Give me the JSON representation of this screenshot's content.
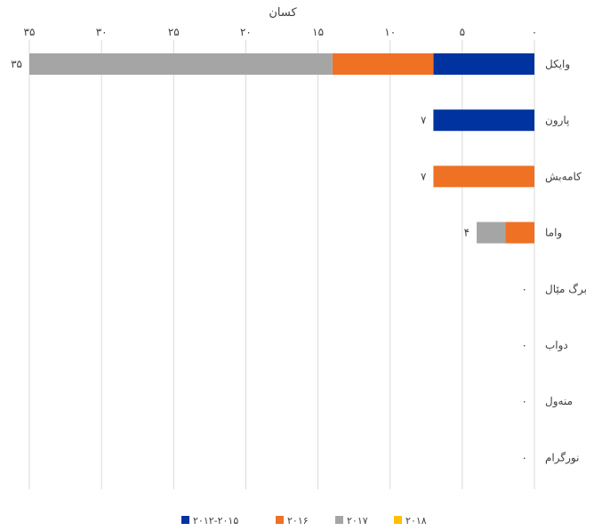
{
  "chart_data": {
    "type": "bar",
    "orientation": "horizontal",
    "stacked": true,
    "reversed_x_axis": true,
    "xlabel": "کسان",
    "xlim": [
      0,
      35
    ],
    "x_ticks": [
      0,
      5,
      10,
      15,
      20,
      25,
      30,
      35
    ],
    "x_tick_labels": [
      "۰",
      "۵",
      "۱۰",
      "۱۵",
      "۲۰",
      "۲۵",
      "۳۰",
      "۳۵"
    ],
    "grid": true,
    "legend_position": "bottom",
    "categories": [
      "وایکل",
      "پارون",
      "کامەبش",
      "واما",
      "برگ مێال",
      "دواب",
      "منەول",
      "نورگرام"
    ],
    "series": [
      {
        "name": "۲۰۱۲-۲۰۱۵",
        "color": "#0033a0",
        "values": [
          7,
          7,
          0,
          0,
          0,
          0,
          0,
          0
        ]
      },
      {
        "name": "۲۰۱۶",
        "color": "#ee7124",
        "values": [
          7,
          0,
          7,
          2,
          0,
          0,
          0,
          0
        ]
      },
      {
        "name": "۲۰۱۷",
        "color": "#a5a5a5",
        "values": [
          21,
          0,
          0,
          2,
          0,
          0,
          0,
          0
        ]
      },
      {
        "name": "۲۰۱۸",
        "color": "#ffc000",
        "values": [
          0,
          0,
          0,
          0,
          0,
          0,
          0,
          0
        ]
      }
    ],
    "totals": [
      35,
      7,
      7,
      4,
      0,
      0,
      0,
      0
    ],
    "total_labels": [
      "۳۵",
      "۷",
      "۷",
      "۴",
      "۰",
      "۰",
      "۰",
      "۰"
    ]
  }
}
